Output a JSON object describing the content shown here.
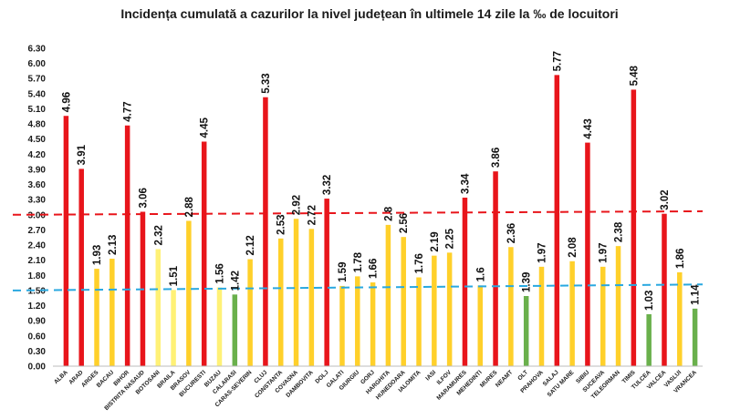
{
  "chart_data": {
    "type": "bar",
    "title": "Incidența cumulată a cazurilor la nivel județean în ultimele 14 zile la ‰ de locuitori",
    "xlabel": "",
    "ylabel": "",
    "ylim": [
      0,
      6.3
    ],
    "yticks": [
      "0.00",
      "0.30",
      "0.60",
      "0.90",
      "1.20",
      "1.50",
      "1.80",
      "2.10",
      "2.40",
      "2.70",
      "3.00",
      "3.30",
      "3.60",
      "3.90",
      "4.20",
      "4.50",
      "4.80",
      "5.10",
      "5.40",
      "5.70",
      "6.00",
      "6.30"
    ],
    "categories": [
      "ALBA",
      "ARAD",
      "ARGES",
      "BACAU",
      "BIHOR",
      "BISTRITA NASAUD",
      "BOTOSANI",
      "BRAILA",
      "BRASOV",
      "BUCURESTI",
      "BUZAU",
      "CALARASI",
      "CARAS-SEVERIN",
      "CLUJ",
      "CONSTANTA",
      "COVASNA",
      "DAMBOVITA",
      "DOLJ",
      "GALATI",
      "GIURGIU",
      "GORJ",
      "HARGHITA",
      "HUNEDOARA",
      "IALOMITA",
      "IASI",
      "ILFOV",
      "MARAMURES",
      "MEHEDINTI",
      "MURES",
      "NEAMT",
      "OLT",
      "PRAHOVA",
      "SALAJ",
      "SATU MARE",
      "SIBIU",
      "SUCEAVA",
      "TELEORMAN",
      "TIMIS",
      "TULCEA",
      "VALCEA",
      "VASLUI",
      "VRANCEA"
    ],
    "values": [
      4.96,
      3.91,
      1.93,
      2.13,
      4.77,
      3.06,
      2.32,
      1.51,
      2.88,
      4.45,
      1.56,
      1.42,
      2.12,
      5.33,
      2.53,
      2.92,
      2.72,
      3.32,
      1.59,
      1.78,
      1.66,
      2.8,
      2.56,
      1.76,
      2.19,
      2.25,
      3.34,
      1.6,
      3.86,
      2.36,
      1.39,
      1.97,
      5.77,
      2.08,
      4.43,
      1.97,
      2.38,
      5.48,
      1.03,
      3.02,
      1.86,
      1.14
    ],
    "labels": [
      "4.96",
      "3.91",
      "1.93",
      "2.13",
      "4.77",
      "3.06",
      "2.32",
      "1.51",
      "2.88",
      "4.45",
      "1.56",
      "1.42",
      "2.12",
      "5.33",
      "2.53",
      "2.92",
      "2.72",
      "3.32",
      "1.59",
      "1.78",
      "1.66",
      "2.8",
      "2.56",
      "1.76",
      "2.19",
      "2.25",
      "3.34",
      "1.6",
      "3.86",
      "2.36",
      "1.39",
      "1.97",
      "5.77",
      "2.08",
      "4.43",
      "1.97",
      "2.38",
      "5.48",
      "1.03",
      "3.02",
      "1.86",
      "1.14"
    ],
    "bar_colors": [
      "#e8151b",
      "#e8151b",
      "#ffd02a",
      "#ffd02a",
      "#e8151b",
      "#e8151b",
      "#fff176",
      "#fff176",
      "#ffd02a",
      "#e8151b",
      "#fff176",
      "#6ab04c",
      "#ffd02a",
      "#e8151b",
      "#ffd02a",
      "#ffd02a",
      "#ffd02a",
      "#e8151b",
      "#ffd02a",
      "#ffd02a",
      "#ffd02a",
      "#ffd02a",
      "#ffd02a",
      "#ffd02a",
      "#ffd02a",
      "#ffd02a",
      "#e8151b",
      "#ffd02a",
      "#e8151b",
      "#ffd02a",
      "#6ab04c",
      "#ffd02a",
      "#e8151b",
      "#ffd02a",
      "#e8151b",
      "#ffd02a",
      "#ffd02a",
      "#e8151b",
      "#6ab04c",
      "#e8151b",
      "#ffd02a",
      "#6ab04c"
    ],
    "thresholds": [
      {
        "value": 3.0,
        "color": "#e8151b",
        "style": "dashed"
      },
      {
        "value": 1.5,
        "color": "#29a8e0",
        "style": "dashed"
      }
    ],
    "grid": false,
    "legend": "none"
  }
}
